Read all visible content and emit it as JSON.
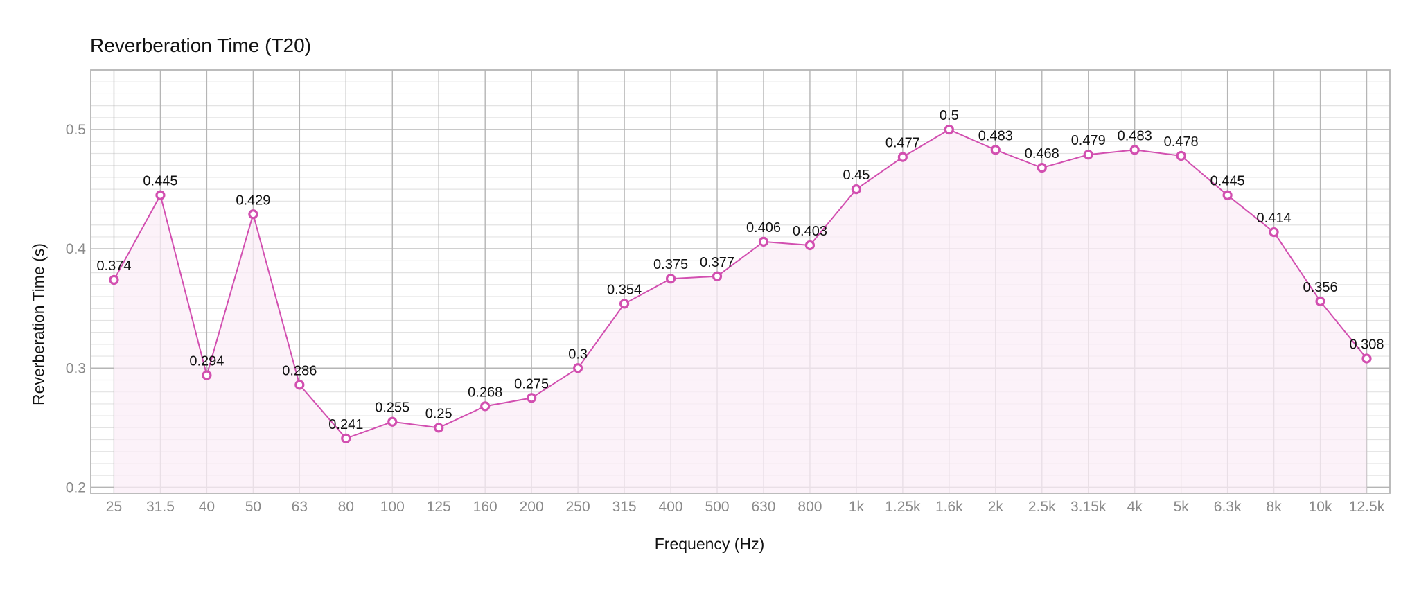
{
  "chart_data": {
    "type": "line",
    "title": "Reverberation Time",
    "title_suffix": "(T20)",
    "xlabel": "Frequency (Hz)",
    "ylabel": "Reverberation Time (s)",
    "categories": [
      "25",
      "31.5",
      "40",
      "50",
      "63",
      "80",
      "100",
      "125",
      "160",
      "200",
      "250",
      "315",
      "400",
      "500",
      "630",
      "800",
      "1k",
      "1.25k",
      "1.6k",
      "2k",
      "2.5k",
      "3.15k",
      "4k",
      "5k",
      "6.3k",
      "8k",
      "10k",
      "12.5k"
    ],
    "series": [
      {
        "values": [
          0.374,
          0.445,
          0.294,
          0.429,
          0.286,
          0.241,
          0.255,
          0.25,
          0.268,
          0.275,
          0.3,
          0.354,
          0.375,
          0.377,
          0.406,
          0.403,
          0.45,
          0.477,
          0.5,
          0.483,
          0.468,
          0.479,
          0.483,
          0.478,
          0.445,
          0.414,
          0.356,
          0.308
        ],
        "labels": [
          "0.374",
          "0.445",
          "0.294",
          "0.429",
          "0.286",
          "0.241",
          "0.255",
          "0.25",
          "0.268",
          "0.275",
          "0.3",
          "0.354",
          "0.375",
          "0.377",
          "0.406",
          "0.403",
          "0.45",
          "0.477",
          "0.5",
          "0.483",
          "0.468",
          "0.479",
          "0.483",
          "0.478",
          "0.445",
          "0.414",
          "0.356",
          "0.308"
        ]
      }
    ],
    "yticks": [
      "0.2",
      "0.3",
      "0.4",
      "0.5"
    ],
    "ylim": [
      0.195,
      0.55
    ],
    "grid": true,
    "area_fill": true,
    "colors": {
      "line": "#d24fb0",
      "fill": "#fbeef7",
      "grid_major": "#b5b5b5",
      "grid_minor": "#e3e3e3"
    }
  }
}
